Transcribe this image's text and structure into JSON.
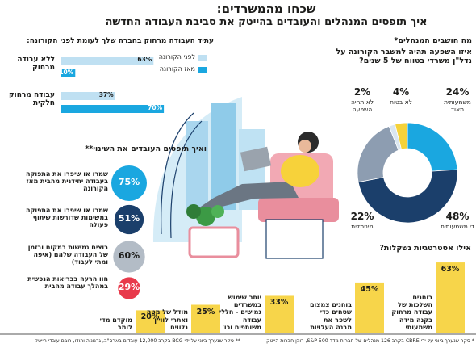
{
  "header": {
    "title": "שכחו מהמשרדים:",
    "subtitle": "איך תופסים המנהלים והעובדים בהייטק את סביבת העבודה החדשה"
  },
  "chart_data": [
    {
      "type": "bar",
      "orientation": "horizontal",
      "title": "עתיד העבודה מרחוק בחברה שלך לעומת לפני הקורונה:",
      "categories": [
        "ללא עבודה מרחוק",
        "עבודה מרחוק חלקית"
      ],
      "series": [
        {
          "name": "לפני הקורונה",
          "color": "#bfe0f2",
          "values": [
            63,
            37
          ],
          "value_labels": [
            "63%",
            "37%"
          ]
        },
        {
          "name": "מאז הקורונה",
          "color": "#1aa7e0",
          "values": [
            10,
            70
          ],
          "value_labels": [
            "10%",
            "70%"
          ]
        }
      ]
    },
    {
      "type": "donut",
      "supertitle": "מה חושבים המנהלים*",
      "title": "איזו השפעה תהיה למשבר הקורונה על נדל\"ן משרדי בטווח של 5 שנים?",
      "categories": [
        "משמעותית מאוד",
        "די משמעותית",
        "מינימלית",
        "לא תהיה השפעה",
        "לא בטוח"
      ],
      "values": [
        24,
        48,
        22,
        2,
        4
      ],
      "value_labels": [
        "24%",
        "48%",
        "22%",
        "2%",
        "4%"
      ],
      "colors": [
        "#1aa7e0",
        "#1b3f6b",
        "#8d9db1",
        "#d9e6f0",
        "#f5d23a"
      ]
    },
    {
      "type": "percent-circles",
      "title": "ואיך תופסים העובדים את השינוי**",
      "categories": [
        "שמרו או שיפרו את התפוקה בעבודה יחידנית מהבית מאז הקורונה",
        "שמרו או שיפרו את התפוקה במשימות שדורשות שיתוף פעולה",
        "רוצים גמישות במקום ובזמן של העבודה שלהם (איפה ומתי לעבוד)",
        "חוו הרעה בבריאות הנפשית במהלך עבודה מהבית"
      ],
      "values": [
        75,
        51,
        60,
        29
      ],
      "value_labels": [
        "75%",
        "51%",
        "60%",
        "29%"
      ],
      "colors": [
        "#1aa7e0",
        "#1b3f6b",
        "#b3bcc6",
        "#e83a4b"
      ]
    },
    {
      "type": "column",
      "title": "אילו אסטרטגיות נשקלות?",
      "categories": [
        "בוחנים השלכות של עבודה מרחוק בקנה מידה משמעותי",
        "בוחנים צמצום שטחים כדי לשפר את מבנה העלויות",
        "יותר שימוש במשרדים גמישים - חללי עבודה משותפים וכו'",
        "מודל של מטה ואתרי לוויין נלווים",
        "מוקדם מדי לומר"
      ],
      "values": [
        63,
        45,
        33,
        25,
        20
      ],
      "value_labels": [
        "63%",
        "45%",
        "33%",
        "25%",
        "20%"
      ],
      "color": "#f7d54a"
    }
  ],
  "footnotes": [
    "* סקר שנערך ביוני על ידי CBRE בקרב 126 מנהלים של חברות מדד S&P 500, רובן חברות הייטק",
    "** סקר שנערך ביוני על ידי BCG בקרב 12,000 עובדים בארה\"ב, גרמניה והודו, רובם עובדי הייטק"
  ]
}
